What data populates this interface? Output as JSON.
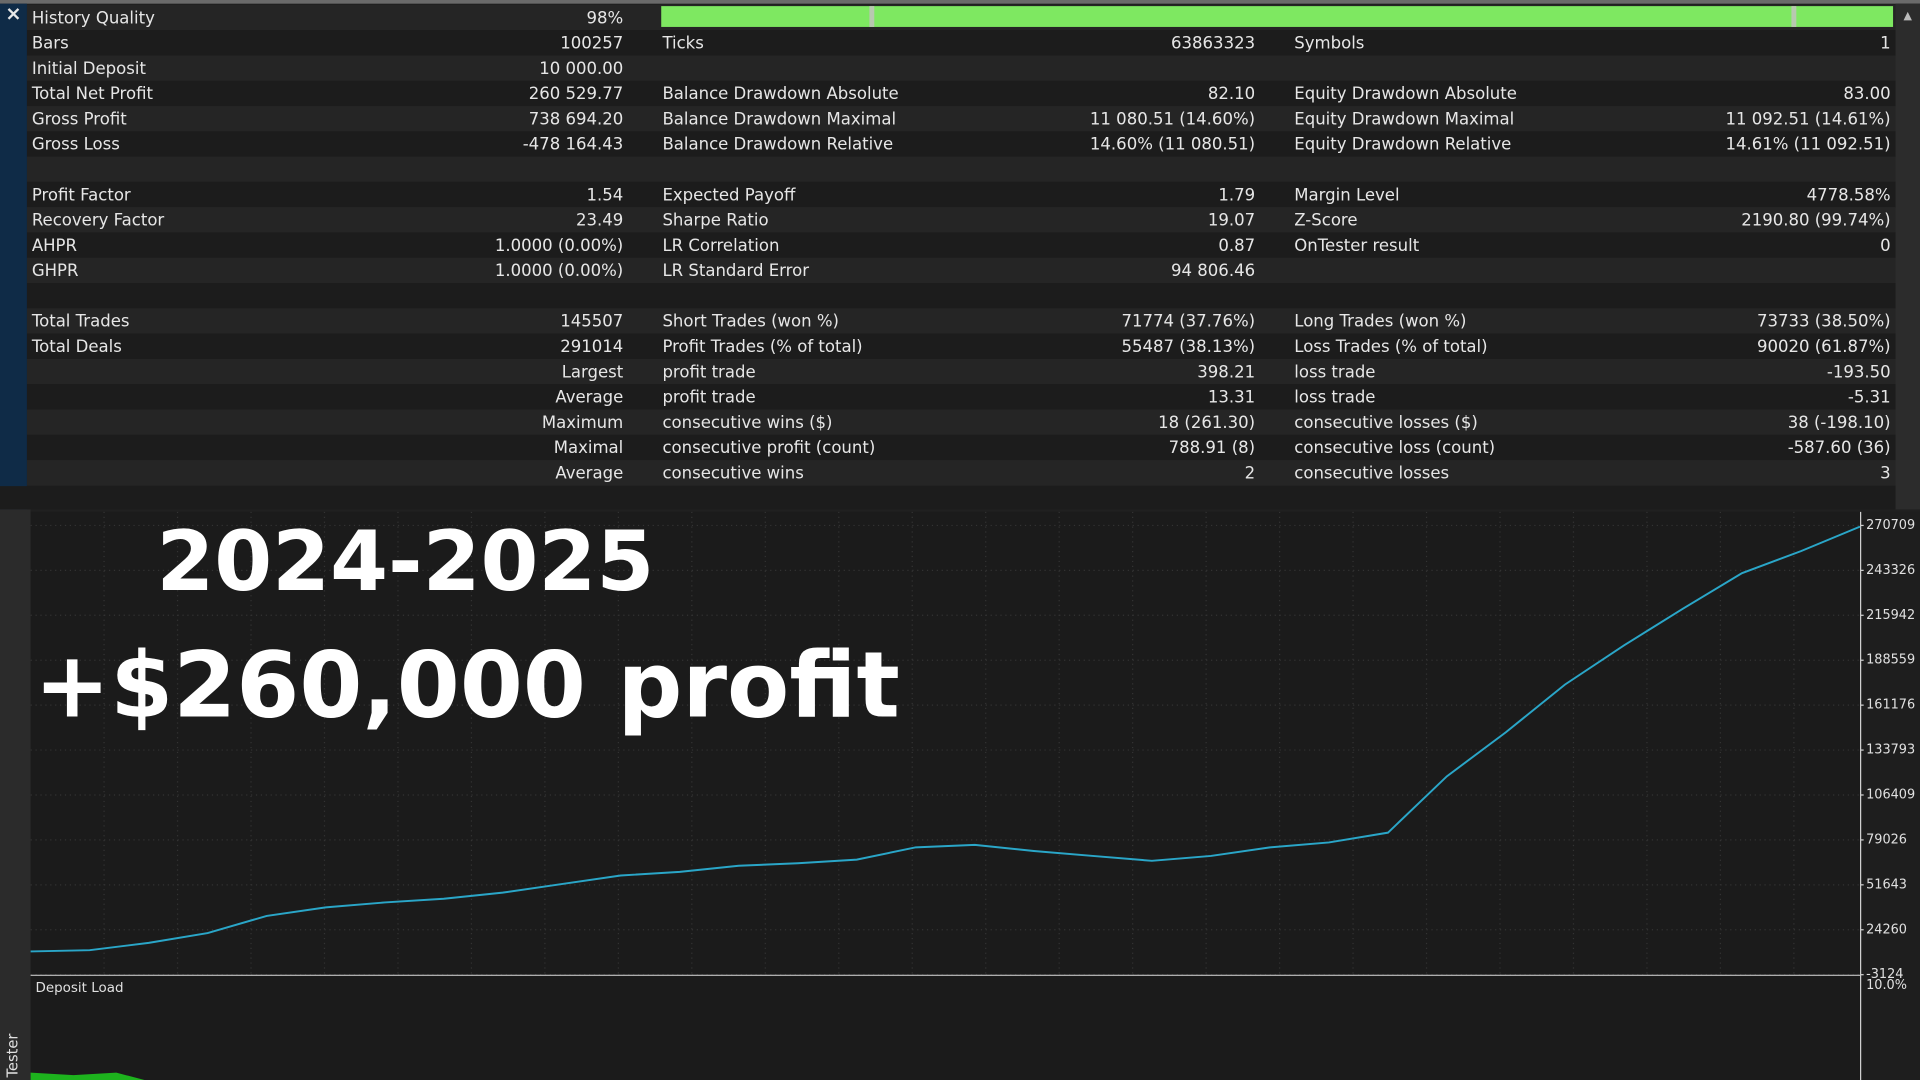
{
  "report": {
    "rows": [
      [
        {
          "label": "History Quality",
          "value": "98%"
        }
      ],
      [
        {
          "label": "Bars",
          "value": "100257"
        },
        {
          "label": "Ticks",
          "value": "63863323"
        },
        {
          "label": "Symbols",
          "value": "1"
        }
      ],
      [
        {
          "label": "Initial Deposit",
          "value": "10 000.00"
        }
      ],
      [
        {
          "label": "Total Net Profit",
          "value": "260 529.77"
        },
        {
          "label": "Balance Drawdown Absolute",
          "value": "82.10"
        },
        {
          "label": "Equity Drawdown Absolute",
          "value": "83.00"
        }
      ],
      [
        {
          "label": "Gross Profit",
          "value": "738 694.20"
        },
        {
          "label": "Balance Drawdown Maximal",
          "value": "11 080.51 (14.60%)"
        },
        {
          "label": "Equity Drawdown Maximal",
          "value": "11 092.51 (14.61%)"
        }
      ],
      [
        {
          "label": "Gross Loss",
          "value": "-478 164.43"
        },
        {
          "label": "Balance Drawdown Relative",
          "value": "14.60% (11 080.51)"
        },
        {
          "label": "Equity Drawdown Relative",
          "value": "14.61% (11 092.51)"
        }
      ],
      [],
      [
        {
          "label": "Profit Factor",
          "value": "1.54"
        },
        {
          "label": "Expected Payoff",
          "value": "1.79"
        },
        {
          "label": "Margin Level",
          "value": "4778.58%"
        }
      ],
      [
        {
          "label": "Recovery Factor",
          "value": "23.49"
        },
        {
          "label": "Sharpe Ratio",
          "value": "19.07"
        },
        {
          "label": "Z-Score",
          "value": "2190.80 (99.74%)"
        }
      ],
      [
        {
          "label": "AHPR",
          "value": "1.0000 (0.00%)"
        },
        {
          "label": "LR Correlation",
          "value": "0.87"
        },
        {
          "label": "OnTester result",
          "value": "0"
        }
      ],
      [
        {
          "label": "GHPR",
          "value": "1.0000 (0.00%)"
        },
        {
          "label": "LR Standard Error",
          "value": "94 806.46"
        }
      ],
      [],
      [
        {
          "label": "Total Trades",
          "value": "145507"
        },
        {
          "label": "Short Trades (won %)",
          "value": "71774 (37.76%)"
        },
        {
          "label": "Long Trades (won %)",
          "value": "73733 (38.50%)"
        }
      ],
      [
        {
          "label": "Total Deals",
          "value": "291014"
        },
        {
          "label": "Profit Trades (% of total)",
          "value": "55487 (38.13%)"
        },
        {
          "label": "Loss Trades (% of total)",
          "value": "90020 (61.87%)"
        }
      ],
      [
        {
          "value": "Largest"
        },
        {
          "label": "profit trade",
          "value": "398.21"
        },
        {
          "label": "loss trade",
          "value": "-193.50"
        }
      ],
      [
        {
          "value": "Average"
        },
        {
          "label": "profit trade",
          "value": "13.31"
        },
        {
          "label": "loss trade",
          "value": "-5.31"
        }
      ],
      [
        {
          "value": "Maximum"
        },
        {
          "label": "consecutive wins ($)",
          "value": "18 (261.30)"
        },
        {
          "label": "consecutive losses ($)",
          "value": "38 (-198.10)"
        }
      ],
      [
        {
          "value": "Maximal"
        },
        {
          "label": "consecutive profit (count)",
          "value": "788.91 (8)"
        },
        {
          "label": "consecutive loss (count)",
          "value": "-587.60 (36)"
        }
      ],
      [
        {
          "value": "Average"
        },
        {
          "label": "consecutive wins",
          "value": "2"
        },
        {
          "label": "consecutive losses",
          "value": "3"
        }
      ]
    ]
  },
  "overlay": {
    "period": "2024-2025",
    "headline": "+$260,000 profit"
  },
  "chart_data": {
    "type": "line",
    "color": "#2aa6c8",
    "grid": true,
    "values": [
      11054,
      11800,
      16277,
      22247,
      32694,
      37917,
      40902,
      43140,
      46871,
      52095,
      57318,
      59557,
      63288,
      64780,
      67019,
      74481,
      75973,
      72242,
      69257,
      66273,
      69257,
      74481,
      77466,
      83435,
      117760,
      144624,
      173725,
      197604,
      219990,
      241630,
      255061,
      269985
    ],
    "ylim": [
      -3124,
      279000
    ],
    "yticks": [
      -3124,
      24260,
      51643,
      79026,
      106409,
      133793,
      161176,
      188559,
      215942,
      243326,
      270709
    ]
  },
  "deposit_load": {
    "label": "Deposit Load",
    "tick": "10.0%"
  },
  "tab": "Tester"
}
